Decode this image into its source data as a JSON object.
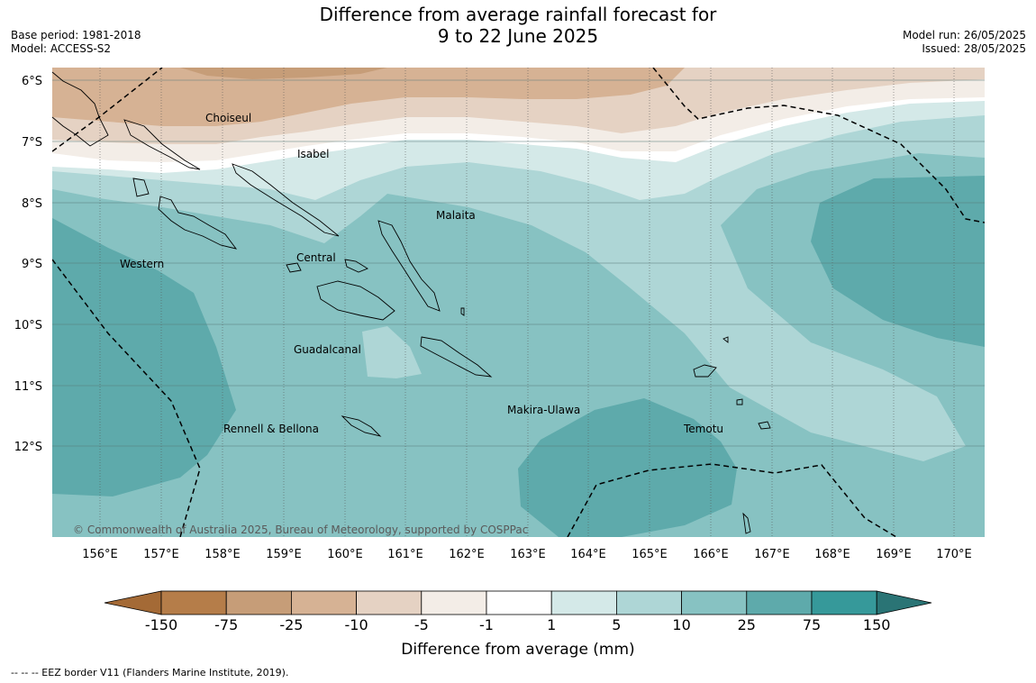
{
  "header": {
    "title_line1": "Difference from average rainfall forecast for",
    "title_line2": "9 to 22 June 2025",
    "base_period": "Base period: 1981-2018",
    "model": "Model: ACCESS-S2",
    "model_run": "Model run: 26/05/2025",
    "issued": "Issued: 28/05/2025"
  },
  "map": {
    "lat_labels": [
      "6°S",
      "7°S",
      "8°S",
      "9°S",
      "10°S",
      "11°S",
      "12°S"
    ],
    "lon_labels": [
      "156°E",
      "157°E",
      "158°E",
      "159°E",
      "160°E",
      "161°E",
      "162°E",
      "163°E",
      "164°E",
      "165°E",
      "166°E",
      "167°E",
      "168°E",
      "169°E",
      "170°E"
    ],
    "regions": [
      "Choiseul",
      "Isabel",
      "Malaita",
      "Central",
      "Western",
      "Guadalcanal",
      "Makira-Ulawa",
      "Temotu",
      "Rennell & Bellona"
    ],
    "copyright": "© Commonwealth of Australia 2025, Bureau of Meteorology, supported by COSPPac"
  },
  "colorbar": {
    "ticks": [
      "-150",
      "-75",
      "-25",
      "-10",
      "-5",
      "-1",
      "1",
      "5",
      "10",
      "25",
      "75",
      "150"
    ],
    "colors": [
      "#a46a36",
      "#b57d49",
      "#c69d78",
      "#d6b294",
      "#e5d2c3",
      "#f3ede7",
      "#ffffff",
      "#d4e9e8",
      "#aed6d6",
      "#87c2c2",
      "#5eaaab",
      "#36999a",
      "#2a7475"
    ],
    "label": "Difference from average (mm)"
  },
  "legend": {
    "eez_note": "--  --  -- EEZ border V11 (Flanders Marine Institute, 2019)."
  }
}
